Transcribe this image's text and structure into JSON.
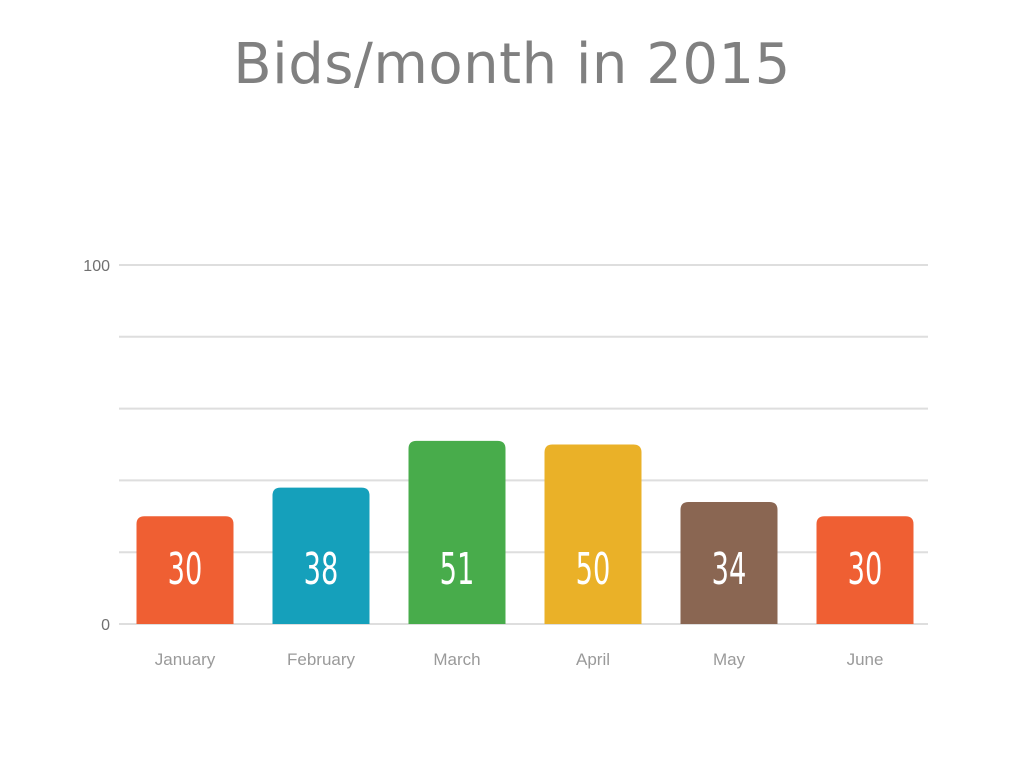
{
  "chart_data": {
    "type": "bar",
    "title": "Bids/month in 2015",
    "categories": [
      "January",
      "February",
      "March",
      "April",
      "May",
      "June"
    ],
    "values": [
      30,
      38,
      51,
      50,
      34,
      30
    ],
    "colors": [
      "#ef5f33",
      "#15a0bb",
      "#48ac4b",
      "#eab128",
      "#8a6652",
      "#ef5f33"
    ],
    "ylim": [
      0,
      100
    ],
    "y_tick_labels": [
      {
        "value": 0,
        "label": "0"
      },
      {
        "value": 100,
        "label": "100"
      }
    ],
    "gridlines": [
      0,
      20,
      40,
      60,
      80,
      100
    ],
    "grid": true,
    "legend": "none",
    "data_labels": true
  }
}
